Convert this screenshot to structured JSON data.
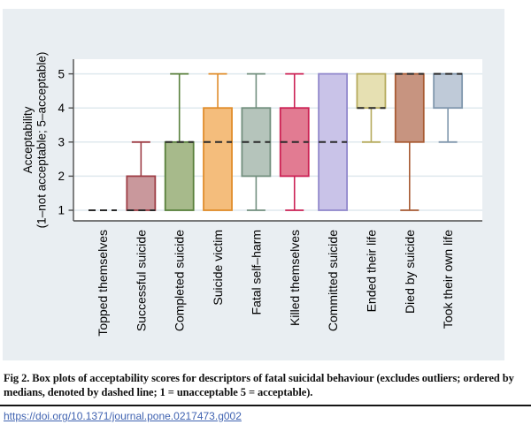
{
  "figure": {
    "caption": "Fig 2. Box plots of acceptability scores for descriptors of fatal suicidal behaviour (excludes outliers; ordered by medians, denoted by dashed line; 1 = unacceptable 5 = acceptable).",
    "doi_link": "https://doi.org/10.1371/journal.pone.0217473.g002"
  },
  "colors": {
    "panel_bg": "#e9eef2",
    "plot_bg": "#ffffff",
    "grid": "#dfe9ee",
    "axis": "#4d4d4d",
    "tick_text": "#000000",
    "median": "#2a2a2a",
    "link": "#4063b1"
  },
  "chart_data": {
    "type": "box",
    "title": "",
    "xlabel": "",
    "ylabel_lines": [
      "Acceptability",
      "(1–not acceptable; 5–acceptable)"
    ],
    "ylim": [
      1,
      5
    ],
    "yticks": [
      1,
      2,
      3,
      4,
      5
    ],
    "grid": true,
    "median_line_style": "dashed",
    "categories": [
      "Topped themselves",
      "Successful suicide",
      "Completed suicide",
      "Suicide victim",
      "Fatal self–harm",
      "Killed themselves",
      "Committed suicide",
      "Ended their life",
      "Died by suicide",
      "Took their own life"
    ],
    "series": [
      {
        "name": "Topped themselves",
        "lo": 1,
        "q1": 1,
        "median": 1,
        "q3": 1,
        "hi": 1,
        "fill": "none",
        "stroke": "#2a2a2a"
      },
      {
        "name": "Successful suicide",
        "lo": 1,
        "q1": 1,
        "median": 1,
        "q3": 2,
        "hi": 3,
        "fill": "#c9989c",
        "stroke": "#9e3e46"
      },
      {
        "name": "Completed suicide",
        "lo": 1,
        "q1": 1,
        "median": 3,
        "q3": 3,
        "hi": 5,
        "fill": "#a7ba8b",
        "stroke": "#59803c"
      },
      {
        "name": "Suicide victim",
        "lo": 1,
        "q1": 1,
        "median": 3,
        "q3": 4,
        "hi": 5,
        "fill": "#f4bd7c",
        "stroke": "#e08c2a"
      },
      {
        "name": "Fatal self–harm",
        "lo": 1,
        "q1": 2,
        "median": 3,
        "q3": 4,
        "hi": 5,
        "fill": "#b5c4bb",
        "stroke": "#73907f"
      },
      {
        "name": "Killed themselves",
        "lo": 1,
        "q1": 2,
        "median": 3,
        "q3": 4,
        "hi": 5,
        "fill": "#e27b92",
        "stroke": "#cc2255"
      },
      {
        "name": "Committed suicide",
        "lo": 1,
        "q1": 1,
        "median": 3,
        "q3": 5,
        "hi": 5,
        "fill": "#c9c3e8",
        "stroke": "#9289cc"
      },
      {
        "name": "Ended their life",
        "lo": 3,
        "q1": 4,
        "median": 4,
        "q3": 5,
        "hi": 5,
        "fill": "#e6e0b2",
        "stroke": "#b6ab5e"
      },
      {
        "name": "Died by suicide",
        "lo": 1,
        "q1": 3,
        "median": 5,
        "q3": 5,
        "hi": 5,
        "fill": "#c79480",
        "stroke": "#a85b34"
      },
      {
        "name": "Took their own life",
        "lo": 3,
        "q1": 4,
        "median": 5,
        "q3": 5,
        "hi": 5,
        "fill": "#bfcad8",
        "stroke": "#8097ad"
      }
    ]
  }
}
